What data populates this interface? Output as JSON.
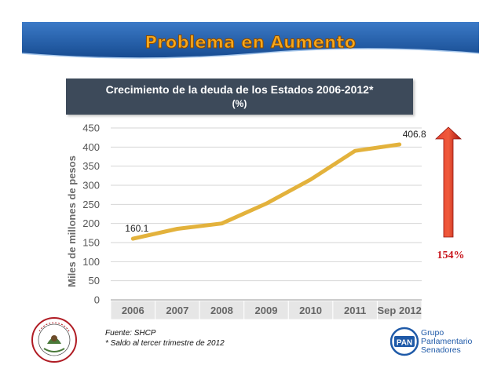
{
  "slide": {
    "title": "Problema en Aumento"
  },
  "chart_header": {
    "title": "Crecimiento de la deuda de los Estados 2006-2012*",
    "subtitle": "(%)"
  },
  "chart_data": {
    "type": "line",
    "categories": [
      "2006",
      "2007",
      "2008",
      "2009",
      "2010",
      "2011",
      "Sep 2012"
    ],
    "series": [
      {
        "values": [
          160.1,
          186,
          200,
          252,
          315,
          390,
          406.8
        ]
      }
    ],
    "ylabel": "Miles de millones de pesos",
    "xlabel": "",
    "ylim": [
      0,
      450
    ],
    "yticks": [
      0,
      50,
      100,
      150,
      200,
      250,
      300,
      350,
      400,
      450
    ],
    "data_labels": [
      {
        "index": 0,
        "text": "160.1"
      },
      {
        "index": 6,
        "text": "406.8"
      }
    ],
    "line_color": "#e3b23c",
    "grid": true
  },
  "growth_indicator": {
    "text": "154%",
    "arrow_color": "#d42a1c",
    "text_color": "#c8131a"
  },
  "footnotes": {
    "source": "Fuente: SHCP",
    "note": "* Saldo al tercer trimestre de 2012"
  },
  "logo_right": {
    "abbr": "PAN",
    "lines": [
      "Grupo",
      "Parlamentario",
      "Senadores"
    ]
  },
  "colors": {
    "banner": "#1f5aa8",
    "header_box": "#3d4a5a",
    "title_fill": "#f7a81b"
  }
}
